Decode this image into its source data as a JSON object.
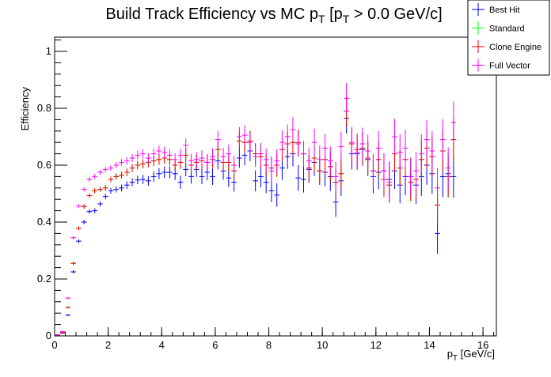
{
  "chart_data": {
    "type": "scatter",
    "title_main": "Build Track Efficiency vs MC p",
    "title_sub1": "T",
    "title_mid": " [p",
    "title_sub2": "T",
    "title_tail": " > 0.0 GeV/c]",
    "xlabel_main": "p",
    "xlabel_sub": "T",
    "xlabel_tail": " [GeV/c]",
    "ylabel": "Efficiency",
    "xlim": [
      0,
      16.5
    ],
    "ylim": [
      0,
      1.05
    ],
    "xticks": [
      0,
      2,
      4,
      6,
      8,
      10,
      12,
      14,
      16
    ],
    "xtick_labels": [
      "0",
      "2",
      "4",
      "6",
      "8",
      "10",
      "12",
      "14",
      "16"
    ],
    "yticks": [
      0,
      0.2,
      0.4,
      0.6,
      0.8,
      1
    ],
    "ytick_labels": [
      "0",
      "0.2",
      "0.4",
      "0.6",
      "0.8",
      "1"
    ],
    "grid": false,
    "legend_position": "top-right",
    "series": [
      {
        "name": "Best Hit",
        "color": "#0000ff",
        "x": [
          0.1,
          0.3,
          0.5,
          0.7,
          0.9,
          1.1,
          1.3,
          1.5,
          1.7,
          1.9,
          2.1,
          2.3,
          2.5,
          2.7,
          2.9,
          3.1,
          3.3,
          3.5,
          3.7,
          3.9,
          4.1,
          4.3,
          4.5,
          4.7,
          4.9,
          5.1,
          5.3,
          5.5,
          5.7,
          5.9,
          6.1,
          6.3,
          6.5,
          6.7,
          6.9,
          7.1,
          7.3,
          7.5,
          7.7,
          7.9,
          8.1,
          8.3,
          8.5,
          8.7,
          8.9,
          9.1,
          9.3,
          9.5,
          9.7,
          9.9,
          10.1,
          10.3,
          10.5,
          10.7,
          10.9,
          11.1,
          11.3,
          11.5,
          11.7,
          11.9,
          12.1,
          12.3,
          12.5,
          12.7,
          12.9,
          13.1,
          13.3,
          13.5,
          13.7,
          13.9,
          14.1,
          14.3,
          14.5,
          14.7,
          14.9
        ],
        "y": [
          0.002,
          0.01,
          0.073,
          0.225,
          0.333,
          0.4,
          0.437,
          0.44,
          0.464,
          0.49,
          0.51,
          0.515,
          0.52,
          0.53,
          0.54,
          0.548,
          0.55,
          0.545,
          0.56,
          0.57,
          0.575,
          0.575,
          0.57,
          0.54,
          0.585,
          0.56,
          0.585,
          0.56,
          0.575,
          0.56,
          0.615,
          0.58,
          0.555,
          0.54,
          0.625,
          0.635,
          0.65,
          0.545,
          0.56,
          0.54,
          0.51,
          0.495,
          0.59,
          0.63,
          0.64,
          0.555,
          0.55,
          0.585,
          0.61,
          0.58,
          0.575,
          0.56,
          0.47,
          0.545,
          0.765,
          0.64,
          0.64,
          0.655,
          0.62,
          0.56,
          0.575,
          0.58,
          0.55,
          0.58,
          0.53,
          0.56,
          0.56,
          0.53,
          0.56,
          0.6,
          0.57,
          0.36,
          0.56,
          0.57,
          0.56
        ],
        "err": [
          0.001,
          0.003,
          0.004,
          0.006,
          0.007,
          0.008,
          0.008,
          0.009,
          0.009,
          0.01,
          0.01,
          0.011,
          0.012,
          0.013,
          0.014,
          0.015,
          0.016,
          0.017,
          0.018,
          0.019,
          0.02,
          0.021,
          0.022,
          0.023,
          0.024,
          0.025,
          0.026,
          0.027,
          0.028,
          0.029,
          0.03,
          0.031,
          0.032,
          0.033,
          0.034,
          0.035,
          0.036,
          0.037,
          0.038,
          0.039,
          0.04,
          0.041,
          0.042,
          0.043,
          0.044,
          0.045,
          0.046,
          0.047,
          0.048,
          0.049,
          0.05,
          0.051,
          0.052,
          0.053,
          0.054,
          0.055,
          0.056,
          0.057,
          0.058,
          0.059,
          0.06,
          0.061,
          0.062,
          0.063,
          0.064,
          0.065,
          0.066,
          0.067,
          0.068,
          0.069,
          0.07,
          0.071,
          0.072,
          0.073,
          0.074
        ]
      },
      {
        "name": "Standard",
        "color": "#00ff00",
        "x": [
          0.1,
          0.3,
          0.5,
          0.7,
          0.9,
          1.1,
          1.3,
          1.5,
          1.7,
          1.9,
          2.1,
          2.3,
          2.5,
          2.7,
          2.9,
          3.1,
          3.3,
          3.5,
          3.7,
          3.9,
          4.1,
          4.3,
          4.5,
          4.7,
          4.9,
          5.1,
          5.3,
          5.5,
          5.7,
          5.9,
          6.1,
          6.3,
          6.5,
          6.7,
          6.9,
          7.1,
          7.3,
          7.5,
          7.7,
          7.9,
          8.1,
          8.3,
          8.5,
          8.7,
          8.9,
          9.1,
          9.3,
          9.5,
          9.7,
          9.9,
          10.1,
          10.3,
          10.5,
          10.7,
          10.9,
          11.1,
          11.3,
          11.5,
          11.7,
          11.9,
          12.1,
          12.3,
          12.5,
          12.7,
          12.9,
          13.1,
          13.3,
          13.5,
          13.7,
          13.9,
          14.1,
          14.3,
          14.5,
          14.7,
          14.9
        ],
        "y": [
          0.003,
          0.012,
          0.1,
          0.255,
          0.378,
          0.455,
          0.493,
          0.51,
          0.515,
          0.52,
          0.55,
          0.56,
          0.565,
          0.575,
          0.59,
          0.6,
          0.605,
          0.61,
          0.615,
          0.62,
          0.625,
          0.62,
          0.6,
          0.61,
          0.635,
          0.6,
          0.61,
          0.615,
          0.61,
          0.62,
          0.655,
          0.61,
          0.61,
          0.58,
          0.685,
          0.68,
          0.685,
          0.64,
          0.63,
          0.6,
          0.59,
          0.6,
          0.655,
          0.675,
          0.68,
          0.68,
          0.64,
          0.59,
          0.625,
          0.58,
          0.62,
          0.595,
          0.54,
          0.57,
          0.79,
          0.675,
          0.655,
          0.66,
          0.625,
          0.58,
          0.62,
          0.55,
          0.53,
          0.64,
          0.59,
          0.62,
          0.54,
          0.55,
          0.62,
          0.66,
          0.63,
          0.46,
          0.65,
          0.56,
          0.69
        ],
        "err": [
          0.001,
          0.003,
          0.004,
          0.006,
          0.007,
          0.008,
          0.008,
          0.009,
          0.009,
          0.01,
          0.01,
          0.011,
          0.012,
          0.013,
          0.014,
          0.015,
          0.016,
          0.017,
          0.018,
          0.019,
          0.02,
          0.021,
          0.022,
          0.023,
          0.024,
          0.025,
          0.026,
          0.027,
          0.028,
          0.029,
          0.03,
          0.031,
          0.032,
          0.033,
          0.034,
          0.035,
          0.036,
          0.037,
          0.038,
          0.039,
          0.04,
          0.041,
          0.042,
          0.043,
          0.044,
          0.045,
          0.046,
          0.047,
          0.048,
          0.049,
          0.05,
          0.051,
          0.052,
          0.053,
          0.054,
          0.055,
          0.056,
          0.057,
          0.058,
          0.059,
          0.06,
          0.061,
          0.062,
          0.063,
          0.064,
          0.065,
          0.066,
          0.067,
          0.068,
          0.069,
          0.07,
          0.071,
          0.072,
          0.073,
          0.074
        ]
      },
      {
        "name": "Clone Engine",
        "color": "#ff0000",
        "x": [
          0.1,
          0.3,
          0.5,
          0.7,
          0.9,
          1.1,
          1.3,
          1.5,
          1.7,
          1.9,
          2.1,
          2.3,
          2.5,
          2.7,
          2.9,
          3.1,
          3.3,
          3.5,
          3.7,
          3.9,
          4.1,
          4.3,
          4.5,
          4.7,
          4.9,
          5.1,
          5.3,
          5.5,
          5.7,
          5.9,
          6.1,
          6.3,
          6.5,
          6.7,
          6.9,
          7.1,
          7.3,
          7.5,
          7.7,
          7.9,
          8.1,
          8.3,
          8.5,
          8.7,
          8.9,
          9.1,
          9.3,
          9.5,
          9.7,
          9.9,
          10.1,
          10.3,
          10.5,
          10.7,
          10.9,
          11.1,
          11.3,
          11.5,
          11.7,
          11.9,
          12.1,
          12.3,
          12.5,
          12.7,
          12.9,
          13.1,
          13.3,
          13.5,
          13.7,
          13.9,
          14.1,
          14.3,
          14.5,
          14.7,
          14.9
        ],
        "y": [
          0.003,
          0.012,
          0.1,
          0.255,
          0.378,
          0.455,
          0.493,
          0.51,
          0.515,
          0.52,
          0.55,
          0.56,
          0.565,
          0.575,
          0.59,
          0.6,
          0.605,
          0.61,
          0.615,
          0.62,
          0.625,
          0.62,
          0.6,
          0.61,
          0.635,
          0.6,
          0.61,
          0.615,
          0.61,
          0.62,
          0.655,
          0.61,
          0.61,
          0.58,
          0.685,
          0.68,
          0.685,
          0.64,
          0.63,
          0.6,
          0.59,
          0.6,
          0.655,
          0.675,
          0.68,
          0.68,
          0.64,
          0.59,
          0.625,
          0.58,
          0.62,
          0.595,
          0.54,
          0.57,
          0.79,
          0.675,
          0.655,
          0.66,
          0.625,
          0.58,
          0.62,
          0.55,
          0.53,
          0.64,
          0.59,
          0.62,
          0.54,
          0.55,
          0.62,
          0.66,
          0.63,
          0.46,
          0.65,
          0.56,
          0.69
        ],
        "err": [
          0.001,
          0.003,
          0.004,
          0.006,
          0.007,
          0.008,
          0.008,
          0.009,
          0.009,
          0.01,
          0.01,
          0.011,
          0.012,
          0.013,
          0.014,
          0.015,
          0.016,
          0.017,
          0.018,
          0.019,
          0.02,
          0.021,
          0.022,
          0.023,
          0.024,
          0.025,
          0.026,
          0.027,
          0.028,
          0.029,
          0.03,
          0.031,
          0.032,
          0.033,
          0.034,
          0.035,
          0.036,
          0.037,
          0.038,
          0.039,
          0.04,
          0.041,
          0.042,
          0.043,
          0.044,
          0.045,
          0.046,
          0.047,
          0.048,
          0.049,
          0.05,
          0.051,
          0.052,
          0.053,
          0.054,
          0.055,
          0.056,
          0.057,
          0.058,
          0.059,
          0.06,
          0.061,
          0.062,
          0.063,
          0.064,
          0.065,
          0.066,
          0.067,
          0.068,
          0.069,
          0.07,
          0.071,
          0.072,
          0.073,
          0.074
        ]
      },
      {
        "name": "Full Vector",
        "color": "#ff00ff",
        "x": [
          0.1,
          0.3,
          0.5,
          0.7,
          0.9,
          1.1,
          1.3,
          1.5,
          1.7,
          1.9,
          2.1,
          2.3,
          2.5,
          2.7,
          2.9,
          3.1,
          3.3,
          3.5,
          3.7,
          3.9,
          4.1,
          4.3,
          4.5,
          4.7,
          4.9,
          5.1,
          5.3,
          5.5,
          5.7,
          5.9,
          6.1,
          6.3,
          6.5,
          6.7,
          6.9,
          7.1,
          7.3,
          7.5,
          7.7,
          7.9,
          8.1,
          8.3,
          8.5,
          8.7,
          8.9,
          9.1,
          9.3,
          9.5,
          9.7,
          9.9,
          10.1,
          10.3,
          10.5,
          10.7,
          10.9,
          11.1,
          11.3,
          11.5,
          11.7,
          11.9,
          12.1,
          12.3,
          12.5,
          12.7,
          12.9,
          13.1,
          13.3,
          13.5,
          13.7,
          13.9,
          14.1,
          14.3,
          14.5,
          14.7,
          14.9
        ],
        "y": [
          0.004,
          0.015,
          0.133,
          0.345,
          0.456,
          0.515,
          0.55,
          0.56,
          0.575,
          0.585,
          0.59,
          0.6,
          0.61,
          0.615,
          0.625,
          0.635,
          0.64,
          0.625,
          0.64,
          0.65,
          0.645,
          0.635,
          0.62,
          0.635,
          0.67,
          0.615,
          0.62,
          0.625,
          0.61,
          0.63,
          0.69,
          0.63,
          0.64,
          0.6,
          0.7,
          0.705,
          0.68,
          0.63,
          0.64,
          0.62,
          0.58,
          0.615,
          0.68,
          0.7,
          0.725,
          0.675,
          0.64,
          0.615,
          0.68,
          0.62,
          0.66,
          0.615,
          0.56,
          0.665,
          0.835,
          0.68,
          0.645,
          0.675,
          0.65,
          0.58,
          0.66,
          0.58,
          0.54,
          0.7,
          0.645,
          0.66,
          0.56,
          0.58,
          0.64,
          0.69,
          0.65,
          0.52,
          0.69,
          0.59,
          0.75
        ],
        "err": [
          0.001,
          0.003,
          0.004,
          0.006,
          0.007,
          0.008,
          0.008,
          0.009,
          0.009,
          0.01,
          0.01,
          0.011,
          0.012,
          0.013,
          0.014,
          0.015,
          0.016,
          0.017,
          0.018,
          0.019,
          0.02,
          0.021,
          0.022,
          0.023,
          0.024,
          0.025,
          0.026,
          0.027,
          0.028,
          0.029,
          0.03,
          0.031,
          0.032,
          0.033,
          0.034,
          0.035,
          0.036,
          0.037,
          0.038,
          0.039,
          0.04,
          0.041,
          0.042,
          0.043,
          0.044,
          0.045,
          0.046,
          0.047,
          0.048,
          0.049,
          0.05,
          0.051,
          0.052,
          0.053,
          0.054,
          0.055,
          0.056,
          0.057,
          0.058,
          0.059,
          0.06,
          0.061,
          0.062,
          0.063,
          0.064,
          0.065,
          0.066,
          0.067,
          0.068,
          0.069,
          0.07,
          0.071,
          0.072,
          0.073,
          0.074
        ]
      }
    ]
  }
}
